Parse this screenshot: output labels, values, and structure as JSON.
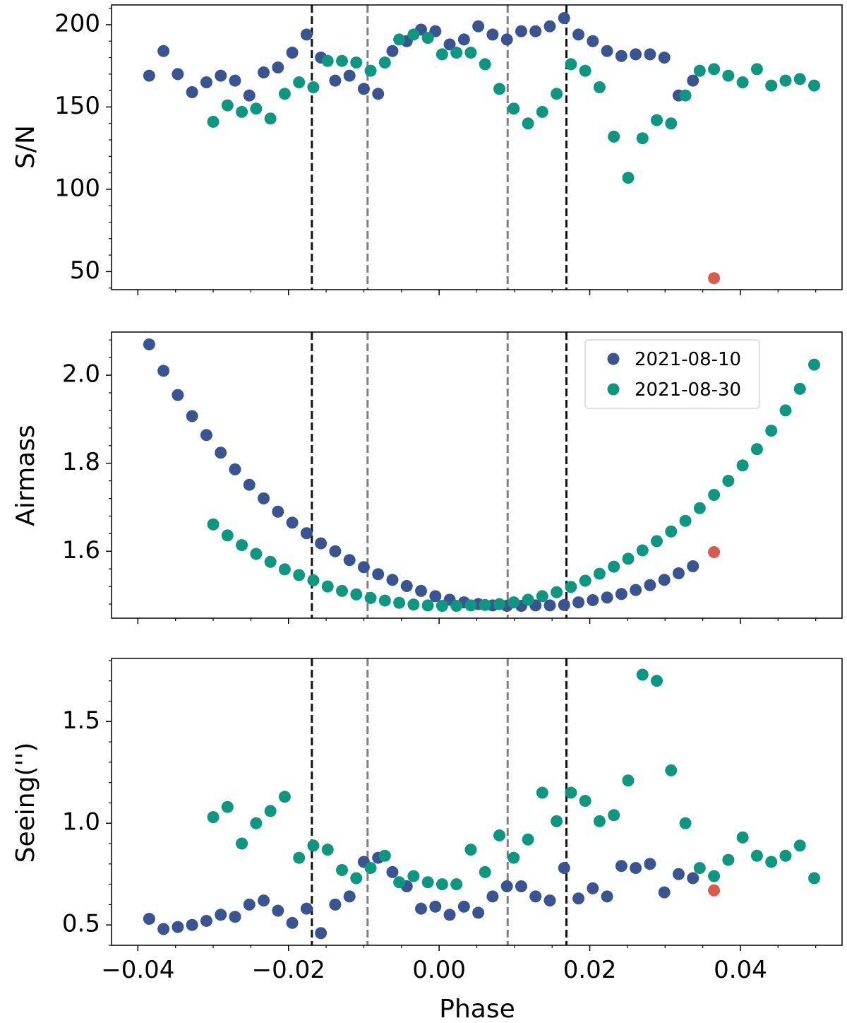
{
  "colors": {
    "series1": "#3a5492",
    "series2": "#0f9680",
    "outlier": "#d95a4e",
    "vline_outer": "#111111",
    "vline_inner": "#808080"
  },
  "chart_data": [
    {
      "type": "scatter",
      "panel": "top",
      "ylabel": "S/N",
      "xlabel": "",
      "xlim": [
        -0.0435,
        0.0535
      ],
      "ylim": [
        39,
        212
      ],
      "yticks": [
        50,
        100,
        150,
        200
      ],
      "ytick_labels": [
        "50",
        "100",
        "150",
        "200"
      ],
      "vlines": [
        {
          "x": -0.0169,
          "style": "outer"
        },
        {
          "x": -0.0095,
          "style": "inner"
        },
        {
          "x": 0.0091,
          "style": "inner"
        },
        {
          "x": 0.0169,
          "style": "outer"
        }
      ],
      "series": [
        {
          "name": "2021-08-10",
          "x": [
            -0.0385,
            -0.0366,
            -0.0347,
            -0.0328,
            -0.0309,
            -0.029,
            -0.0271,
            -0.0252,
            -0.0233,
            -0.0214,
            -0.0195,
            -0.0176,
            -0.0157,
            -0.0138,
            -0.0119,
            -0.01,
            -0.0081,
            -0.0062,
            -0.0043,
            -0.0024,
            -0.0005,
            0.0014,
            0.0033,
            0.0052,
            0.0071,
            0.009,
            0.0109,
            0.0128,
            0.0147,
            0.0166,
            0.0185,
            0.0204,
            0.0223,
            0.0242,
            0.0261,
            0.028,
            0.0299,
            0.0318,
            0.0337
          ],
          "y": [
            169,
            184,
            170,
            159,
            165,
            169,
            166,
            157,
            171,
            174,
            183,
            194,
            180,
            166,
            169,
            161,
            158,
            184,
            190,
            197,
            196,
            188,
            191,
            199,
            194,
            191,
            196,
            196,
            199,
            204,
            194,
            190,
            184,
            181,
            182,
            182,
            180,
            157,
            166
          ]
        },
        {
          "name": "2021-08-30",
          "x": [
            -0.03,
            -0.0281,
            -0.0262,
            -0.0243,
            -0.0224,
            -0.0205,
            -0.0186,
            -0.0167,
            -0.0148,
            -0.0129,
            -0.011,
            -0.0091,
            -0.0072,
            -0.0053,
            -0.0034,
            -0.0015,
            0.0004,
            0.0023,
            0.0042,
            0.0061,
            0.008,
            0.0099,
            0.0118,
            0.0137,
            0.0156,
            0.0175,
            0.0194,
            0.0213,
            0.0232,
            0.0251,
            0.027,
            0.0289,
            0.0308,
            0.0327,
            0.0346,
            0.0365,
            0.0384,
            0.0403,
            0.0422,
            0.0441,
            0.046,
            0.0479,
            0.0498
          ],
          "y": [
            141,
            151,
            147,
            149,
            143,
            158,
            165,
            162,
            178,
            178,
            177,
            172,
            177,
            191,
            194,
            192,
            182,
            183,
            183,
            176,
            161,
            149,
            140,
            147,
            158,
            176,
            172,
            162,
            132,
            107,
            131,
            142,
            140,
            157,
            172,
            173,
            169,
            165,
            173,
            163,
            166,
            167,
            163
          ]
        },
        {
          "name": "outlier",
          "x": [
            0.0365
          ],
          "y": [
            46
          ]
        }
      ]
    },
    {
      "type": "scatter",
      "panel": "middle",
      "ylabel": "Airmass",
      "xlabel": "",
      "xlim": [
        -0.0435,
        0.0535
      ],
      "ylim": [
        1.448,
        2.098
      ],
      "yticks": [
        1.6,
        1.8,
        2.0
      ],
      "ytick_labels": [
        "1.6",
        "1.8",
        "2.0"
      ],
      "vlines": [
        {
          "x": -0.0169,
          "style": "outer"
        },
        {
          "x": -0.0095,
          "style": "inner"
        },
        {
          "x": 0.0091,
          "style": "inner"
        },
        {
          "x": 0.0169,
          "style": "outer"
        }
      ],
      "legend": {
        "location": "top-right",
        "entries": [
          "2021-08-10",
          "2021-08-30"
        ]
      },
      "series": [
        {
          "name": "2021-08-10",
          "x": [
            -0.0385,
            -0.0366,
            -0.0347,
            -0.0328,
            -0.0309,
            -0.029,
            -0.0271,
            -0.0252,
            -0.0233,
            -0.0214,
            -0.0195,
            -0.0176,
            -0.0157,
            -0.0138,
            -0.0119,
            -0.01,
            -0.0081,
            -0.0062,
            -0.0043,
            -0.0024,
            -0.0005,
            0.0014,
            0.0033,
            0.0052,
            0.0071,
            0.009,
            0.0109,
            0.0128,
            0.0147,
            0.0166,
            0.0185,
            0.0204,
            0.0223,
            0.0242,
            0.0261,
            0.028,
            0.0299,
            0.0318,
            0.0337
          ],
          "y": [
            2.07,
            2.01,
            1.955,
            1.907,
            1.864,
            1.824,
            1.786,
            1.751,
            1.72,
            1.69,
            1.665,
            1.641,
            1.618,
            1.6,
            1.58,
            1.564,
            1.548,
            1.535,
            1.521,
            1.51,
            1.498,
            1.49,
            1.484,
            1.48,
            1.477,
            1.476,
            1.476,
            1.477,
            1.477,
            1.478,
            1.484,
            1.489,
            1.495,
            1.503,
            1.512,
            1.523,
            1.535,
            1.55,
            1.566
          ]
        },
        {
          "name": "2021-08-30",
          "x": [
            -0.03,
            -0.0281,
            -0.0262,
            -0.0243,
            -0.0224,
            -0.0205,
            -0.0186,
            -0.0167,
            -0.0148,
            -0.0129,
            -0.011,
            -0.0091,
            -0.0072,
            -0.0053,
            -0.0034,
            -0.0015,
            0.0004,
            0.0023,
            0.0042,
            0.0061,
            0.008,
            0.0099,
            0.0118,
            0.0137,
            0.0156,
            0.0175,
            0.0194,
            0.0213,
            0.0232,
            0.0251,
            0.027,
            0.0289,
            0.0308,
            0.0327,
            0.0346,
            0.0365,
            0.0384,
            0.0403,
            0.0422,
            0.0441,
            0.046,
            0.0479,
            0.0498
          ],
          "y": [
            1.661,
            1.636,
            1.614,
            1.594,
            1.576,
            1.559,
            1.546,
            1.534,
            1.52,
            1.51,
            1.502,
            1.494,
            1.488,
            1.483,
            1.479,
            1.477,
            1.476,
            1.476,
            1.477,
            1.478,
            1.48,
            1.484,
            1.49,
            1.498,
            1.507,
            1.519,
            1.533,
            1.549,
            1.565,
            1.583,
            1.602,
            1.623,
            1.645,
            1.669,
            1.698,
            1.728,
            1.76,
            1.795,
            1.832,
            1.874,
            1.92,
            1.969,
            2.024
          ]
        },
        {
          "name": "outlier",
          "x": [
            0.0365
          ],
          "y": [
            1.598
          ]
        }
      ]
    },
    {
      "type": "scatter",
      "panel": "bottom",
      "ylabel": "Seeing('')",
      "xlabel": "Phase",
      "xlim": [
        -0.0435,
        0.0535
      ],
      "ylim": [
        0.4,
        1.81
      ],
      "yticks": [
        0.5,
        1.0,
        1.5
      ],
      "ytick_labels": [
        "0.5",
        "1.0",
        "1.5"
      ],
      "xticks": [
        -0.04,
        -0.02,
        0.0,
        0.02,
        0.04
      ],
      "xtick_labels": [
        "−0.04",
        "−0.02",
        "0.00",
        "0.02",
        "0.04"
      ],
      "vlines": [
        {
          "x": -0.0169,
          "style": "outer"
        },
        {
          "x": -0.0095,
          "style": "inner"
        },
        {
          "x": 0.0091,
          "style": "inner"
        },
        {
          "x": 0.0169,
          "style": "outer"
        }
      ],
      "series": [
        {
          "name": "2021-08-10",
          "x": [
            -0.0385,
            -0.0366,
            -0.0347,
            -0.0328,
            -0.0309,
            -0.029,
            -0.0271,
            -0.0252,
            -0.0233,
            -0.0214,
            -0.0195,
            -0.0176,
            -0.0157,
            -0.0138,
            -0.0119,
            -0.01,
            -0.0081,
            -0.0062,
            -0.0043,
            -0.0024,
            -0.0005,
            0.0014,
            0.0033,
            0.0052,
            0.0071,
            0.009,
            0.0109,
            0.0128,
            0.0147,
            0.0166,
            0.0185,
            0.0204,
            0.0223,
            0.0242,
            0.0261,
            0.028,
            0.0299,
            0.0318,
            0.0337
          ],
          "y": [
            0.53,
            0.48,
            0.49,
            0.5,
            0.52,
            0.55,
            0.54,
            0.6,
            0.62,
            0.57,
            0.51,
            0.58,
            0.46,
            0.6,
            0.64,
            0.81,
            0.83,
            0.76,
            0.69,
            0.58,
            0.59,
            0.55,
            0.59,
            0.56,
            0.64,
            0.69,
            0.69,
            0.64,
            0.62,
            0.78,
            0.63,
            0.68,
            0.64,
            0.79,
            0.78,
            0.8,
            0.66,
            0.75,
            0.73
          ]
        },
        {
          "name": "2021-08-30",
          "x": [
            -0.03,
            -0.0281,
            -0.0262,
            -0.0243,
            -0.0224,
            -0.0205,
            -0.0186,
            -0.0167,
            -0.0148,
            -0.0129,
            -0.011,
            -0.0091,
            -0.0072,
            -0.0053,
            -0.0034,
            -0.0015,
            0.0004,
            0.0023,
            0.0042,
            0.0061,
            0.008,
            0.0099,
            0.0118,
            0.0137,
            0.0156,
            0.0175,
            0.0194,
            0.0213,
            0.0232,
            0.0251,
            0.027,
            0.0289,
            0.0308,
            0.0327,
            0.0346,
            0.0365,
            0.0384,
            0.0403,
            0.0422,
            0.0441,
            0.046,
            0.0479,
            0.0498
          ],
          "y": [
            1.03,
            1.08,
            0.9,
            1.0,
            1.06,
            1.13,
            0.83,
            0.89,
            0.87,
            0.77,
            0.73,
            0.78,
            0.84,
            0.71,
            0.74,
            0.71,
            0.7,
            0.7,
            0.87,
            0.76,
            0.94,
            0.83,
            0.92,
            1.15,
            1.01,
            1.15,
            1.11,
            1.01,
            1.04,
            1.21,
            1.73,
            1.7,
            1.26,
            1.0,
            0.78,
            0.74,
            0.82,
            0.93,
            0.84,
            0.81,
            0.84,
            0.89,
            0.73
          ]
        },
        {
          "name": "outlier",
          "x": [
            0.0365
          ],
          "y": [
            0.67
          ]
        }
      ]
    }
  ]
}
